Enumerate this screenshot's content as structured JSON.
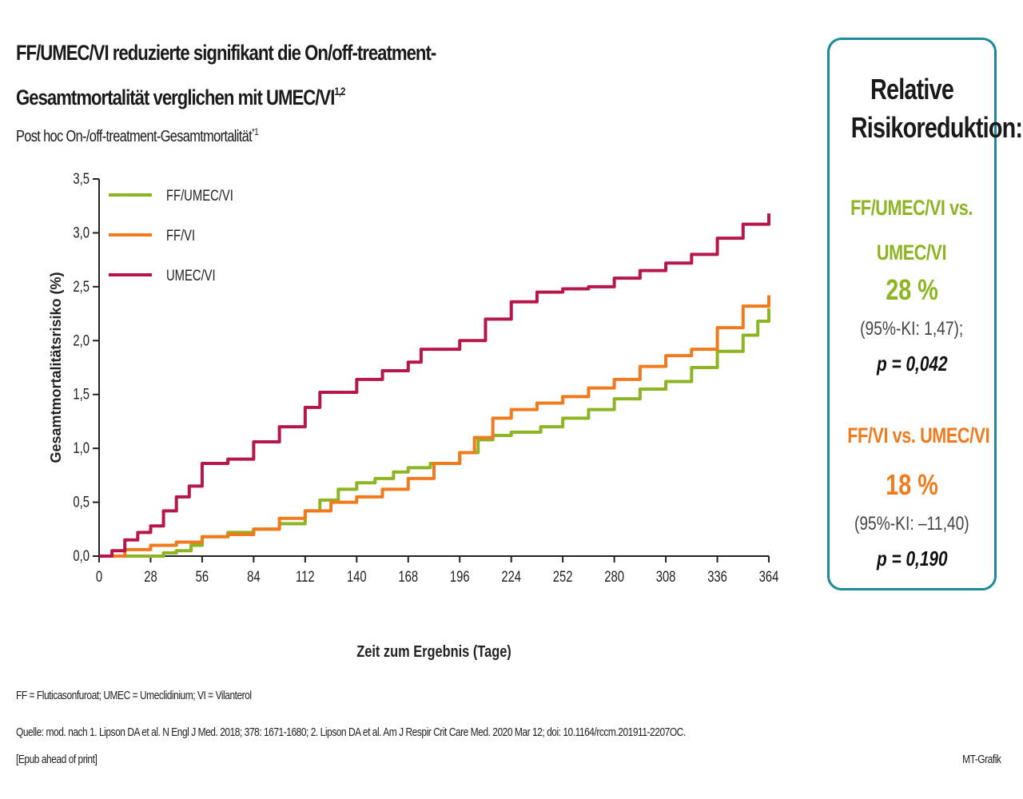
{
  "header": {
    "title_line1": "FF/UMEC/VI reduzierte signifikant die On/off-treatment-",
    "title_line2": "Gesamtmortalität verglichen mit UMEC/VI",
    "title_sup": "1,2",
    "subtitle": "Post hoc On-/off-treatment-Gesamtmortalität",
    "subtitle_sup": "*1"
  },
  "side_box": {
    "title_line1": "Relative",
    "title_line2": "Risikoreduktion:",
    "comparisons": [
      {
        "label_line1": "FF/UMEC/VI vs.",
        "label_line2": "UMEC/VI",
        "value": "28 %",
        "ci": "(95%-KI: 1,47);",
        "p": "p = 0,042",
        "color": "#8cb423"
      },
      {
        "label_line1": "FF/VI vs. UMEC/VI",
        "label_line2": "",
        "value": "18 %",
        "ci": "(95%-KI: –11,40)",
        "p": "p = 0,190",
        "color": "#f07a1e"
      }
    ]
  },
  "chart_data": {
    "type": "line",
    "ylabel": "Gesamtmortalitätsrisiko (%)",
    "xlabel": "Zeit zum Ergebnis (Tage)",
    "xlim": [
      0,
      364
    ],
    "ylim": [
      0,
      3.5
    ],
    "xticks": [
      0,
      28,
      56,
      84,
      112,
      140,
      168,
      196,
      224,
      252,
      280,
      308,
      336,
      364
    ],
    "yticks": [
      0.0,
      0.5,
      1.0,
      1.5,
      2.0,
      2.5,
      3.0,
      3.5
    ],
    "ytick_labels": [
      "0,0",
      "0,5",
      "1,0",
      "1,5",
      "2,0",
      "2,5",
      "3,0",
      "3,5"
    ],
    "legend_position": "top-left",
    "series": [
      {
        "name": "FF/UMEC/VI",
        "color": "#8cb423",
        "points": [
          [
            0,
            0
          ],
          [
            28,
            0
          ],
          [
            35,
            0.03
          ],
          [
            42,
            0.05
          ],
          [
            50,
            0.1
          ],
          [
            56,
            0.18
          ],
          [
            70,
            0.22
          ],
          [
            84,
            0.25
          ],
          [
            98,
            0.3
          ],
          [
            112,
            0.42
          ],
          [
            120,
            0.52
          ],
          [
            130,
            0.62
          ],
          [
            140,
            0.68
          ],
          [
            150,
            0.72
          ],
          [
            160,
            0.78
          ],
          [
            168,
            0.82
          ],
          [
            180,
            0.86
          ],
          [
            196,
            0.96
          ],
          [
            206,
            1.08
          ],
          [
            214,
            1.12
          ],
          [
            224,
            1.15
          ],
          [
            240,
            1.2
          ],
          [
            252,
            1.28
          ],
          [
            266,
            1.36
          ],
          [
            280,
            1.46
          ],
          [
            294,
            1.55
          ],
          [
            308,
            1.62
          ],
          [
            322,
            1.75
          ],
          [
            336,
            1.9
          ],
          [
            350,
            2.05
          ],
          [
            358,
            2.18
          ],
          [
            364,
            2.3
          ]
        ]
      },
      {
        "name": "FF/VI",
        "color": "#f07a1e",
        "points": [
          [
            0,
            0
          ],
          [
            14,
            0.06
          ],
          [
            28,
            0.1
          ],
          [
            42,
            0.13
          ],
          [
            56,
            0.18
          ],
          [
            70,
            0.2
          ],
          [
            84,
            0.25
          ],
          [
            98,
            0.35
          ],
          [
            112,
            0.42
          ],
          [
            126,
            0.5
          ],
          [
            140,
            0.55
          ],
          [
            154,
            0.62
          ],
          [
            168,
            0.72
          ],
          [
            182,
            0.86
          ],
          [
            196,
            0.96
          ],
          [
            204,
            1.1
          ],
          [
            214,
            1.28
          ],
          [
            224,
            1.36
          ],
          [
            238,
            1.42
          ],
          [
            252,
            1.48
          ],
          [
            266,
            1.56
          ],
          [
            280,
            1.64
          ],
          [
            294,
            1.76
          ],
          [
            308,
            1.86
          ],
          [
            322,
            1.92
          ],
          [
            336,
            2.12
          ],
          [
            350,
            2.32
          ],
          [
            364,
            2.42
          ]
        ]
      },
      {
        "name": "UMEC/VI",
        "color": "#b5174a",
        "points": [
          [
            0,
            0
          ],
          [
            7,
            0.05
          ],
          [
            14,
            0.15
          ],
          [
            21,
            0.22
          ],
          [
            28,
            0.28
          ],
          [
            35,
            0.42
          ],
          [
            42,
            0.55
          ],
          [
            49,
            0.65
          ],
          [
            56,
            0.86
          ],
          [
            70,
            0.9
          ],
          [
            84,
            1.06
          ],
          [
            98,
            1.2
          ],
          [
            112,
            1.38
          ],
          [
            120,
            1.52
          ],
          [
            140,
            1.64
          ],
          [
            154,
            1.72
          ],
          [
            168,
            1.8
          ],
          [
            175,
            1.92
          ],
          [
            196,
            2.0
          ],
          [
            210,
            2.2
          ],
          [
            224,
            2.36
          ],
          [
            238,
            2.45
          ],
          [
            252,
            2.48
          ],
          [
            266,
            2.5
          ],
          [
            280,
            2.58
          ],
          [
            294,
            2.65
          ],
          [
            308,
            2.72
          ],
          [
            322,
            2.8
          ],
          [
            336,
            2.95
          ],
          [
            350,
            3.08
          ],
          [
            364,
            3.18
          ]
        ]
      }
    ]
  },
  "footer": {
    "abbreviations": "FF = Fluticasonfuroat; UMEC = Umeclidinium; VI = Vilanterol",
    "source_line1": "Quelle: mod. nach 1. Lipson DA et al. N Engl J Med. 2018; 378: 1671-1680; 2. Lipson DA et al. Am J Respir Crit Care Med. 2020 Mar 12; doi: 10.1164/rccm.201911-2207OC.",
    "source_line2": "[Epub ahead of print]",
    "credit": "MT-Grafik"
  }
}
